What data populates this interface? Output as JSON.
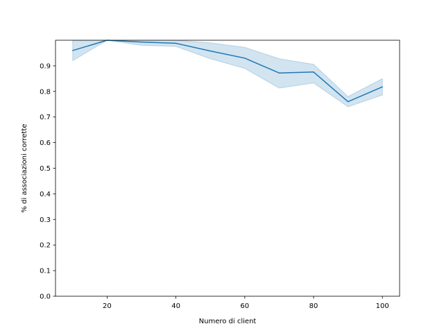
{
  "chart_data": {
    "type": "line",
    "title": "",
    "xlabel": "Numero di client",
    "ylabel": "% di associazioni corrette",
    "xlim": [
      5,
      105
    ],
    "ylim": [
      0.0,
      1.0
    ],
    "xticks": [
      20,
      40,
      60,
      80,
      100
    ],
    "yticks": [
      0.0,
      0.1,
      0.2,
      0.3,
      0.4,
      0.5,
      0.6,
      0.7,
      0.8,
      0.9
    ],
    "grid": false,
    "legend": "none",
    "series": [
      {
        "x": [
          10,
          20,
          30,
          40,
          50,
          60,
          70,
          80,
          90,
          100
        ],
        "y": [
          0.96,
          1.0,
          0.993,
          0.988,
          0.958,
          0.93,
          0.872,
          0.876,
          0.76,
          0.818
        ],
        "ci_lower": [
          0.92,
          1.0,
          0.98,
          0.976,
          0.928,
          0.89,
          0.813,
          0.833,
          0.74,
          0.786
        ],
        "ci_upper": [
          1.0,
          1.0,
          1.0,
          1.0,
          0.99,
          0.972,
          0.928,
          0.906,
          0.78,
          0.85
        ],
        "color": "#1f77b4",
        "band_color": "#1f77b4"
      }
    ]
  }
}
